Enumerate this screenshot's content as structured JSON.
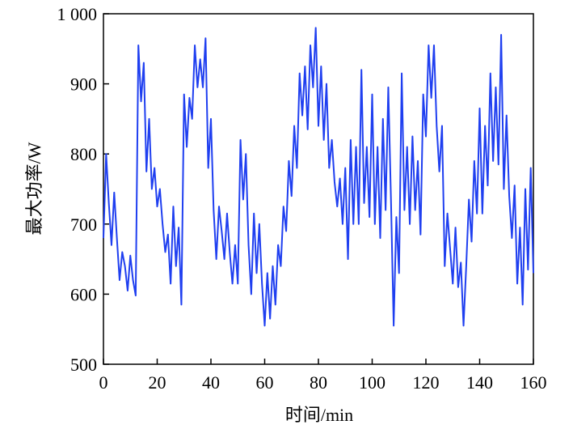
{
  "chart_data": {
    "type": "line",
    "xlabel": "时间/min",
    "ylabel": "最大功率/W",
    "x": [
      0,
      1,
      2,
      3,
      4,
      5,
      6,
      7,
      8,
      9,
      10,
      11,
      12,
      13,
      14,
      15,
      16,
      17,
      18,
      19,
      20,
      21,
      22,
      23,
      24,
      25,
      26,
      27,
      28,
      29,
      30,
      31,
      32,
      33,
      34,
      35,
      36,
      37,
      38,
      39,
      40,
      41,
      42,
      43,
      44,
      45,
      46,
      47,
      48,
      49,
      50,
      51,
      52,
      53,
      54,
      55,
      56,
      57,
      58,
      59,
      60,
      61,
      62,
      63,
      64,
      65,
      66,
      67,
      68,
      69,
      70,
      71,
      72,
      73,
      74,
      75,
      76,
      77,
      78,
      79,
      80,
      81,
      82,
      83,
      84,
      85,
      86,
      87,
      88,
      89,
      90,
      91,
      92,
      93,
      94,
      95,
      96,
      97,
      98,
      99,
      100,
      101,
      102,
      103,
      104,
      105,
      106,
      107,
      108,
      109,
      110,
      111,
      112,
      113,
      114,
      115,
      116,
      117,
      118,
      119,
      120,
      121,
      122,
      123,
      124,
      125,
      126,
      127,
      128,
      129,
      130,
      131,
      132,
      133,
      134,
      135,
      136,
      137,
      138,
      139,
      140,
      141,
      142,
      143,
      144,
      145,
      146,
      147,
      148,
      149,
      150,
      151,
      152,
      153,
      154,
      155,
      156,
      157,
      158,
      159,
      160
    ],
    "series": [
      {
        "name": "最大功率",
        "color": "#1f3ff0",
        "values": [
          680,
          800,
          730,
          670,
          745,
          680,
          620,
          660,
          640,
          605,
          655,
          620,
          598,
          955,
          875,
          930,
          775,
          850,
          750,
          780,
          725,
          750,
          700,
          660,
          685,
          615,
          725,
          640,
          695,
          585,
          885,
          810,
          880,
          850,
          955,
          895,
          935,
          895,
          965,
          780,
          850,
          720,
          650,
          725,
          690,
          650,
          715,
          660,
          615,
          670,
          615,
          820,
          735,
          800,
          670,
          600,
          715,
          630,
          700,
          615,
          555,
          630,
          565,
          640,
          585,
          670,
          640,
          725,
          690,
          790,
          740,
          840,
          780,
          915,
          855,
          925,
          835,
          955,
          895,
          980,
          840,
          925,
          820,
          900,
          780,
          820,
          760,
          725,
          765,
          700,
          780,
          650,
          820,
          700,
          810,
          700,
          920,
          730,
          810,
          710,
          885,
          700,
          810,
          680,
          850,
          720,
          895,
          735,
          555,
          710,
          630,
          915,
          720,
          810,
          700,
          825,
          720,
          790,
          685,
          885,
          825,
          955,
          880,
          955,
          840,
          775,
          840,
          640,
          715,
          665,
          615,
          695,
          610,
          645,
          555,
          640,
          735,
          675,
          790,
          715,
          865,
          715,
          840,
          755,
          915,
          790,
          895,
          785,
          970,
          750,
          855,
          740,
          680,
          755,
          615,
          695,
          585,
          750,
          635,
          780,
          630
        ]
      }
    ],
    "xlim": [
      0,
      160
    ],
    "xticks": [
      0,
      20,
      40,
      60,
      80,
      100,
      120,
      140,
      160
    ],
    "ylim": [
      500,
      1000
    ],
    "yticks": [
      500,
      600,
      700,
      800,
      900,
      {
        "value": 1000,
        "label": "1 000"
      }
    ]
  }
}
